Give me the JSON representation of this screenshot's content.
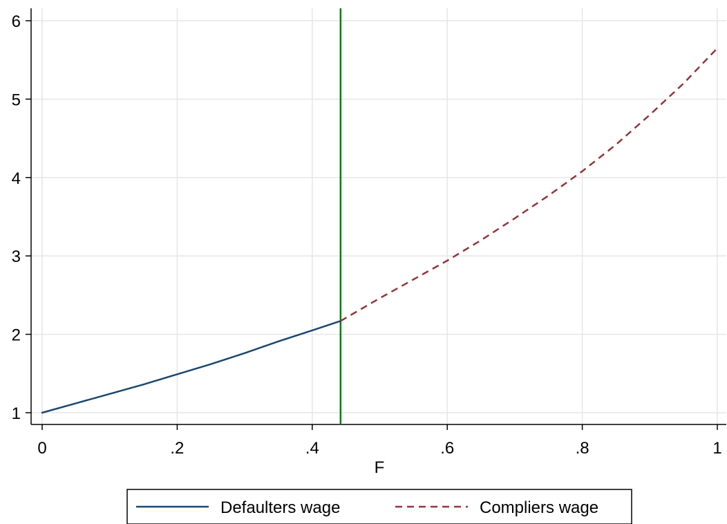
{
  "chart_data": {
    "type": "line",
    "title": "",
    "xlabel": "F",
    "ylabel": "",
    "xlim": [
      0,
      1
    ],
    "ylim": [
      1,
      6
    ],
    "grid": true,
    "legend_position": "bottom",
    "x_ticks": [
      {
        "value": 0,
        "label": "0"
      },
      {
        "value": 0.2,
        "label": ".2"
      },
      {
        "value": 0.4,
        "label": ".4"
      },
      {
        "value": 0.6,
        "label": ".6"
      },
      {
        "value": 0.8,
        "label": ".8"
      },
      {
        "value": 1,
        "label": "1"
      }
    ],
    "y_ticks": [
      {
        "value": 1,
        "label": "1"
      },
      {
        "value": 2,
        "label": "2"
      },
      {
        "value": 3,
        "label": "3"
      },
      {
        "value": 4,
        "label": "4"
      },
      {
        "value": 5,
        "label": "5"
      },
      {
        "value": 6,
        "label": "6"
      }
    ],
    "vertical_line": {
      "x": 0.442,
      "color": "#008000"
    },
    "series": [
      {
        "name": "Defaulters wage",
        "color": "#1a476f",
        "style": "solid",
        "x": [
          0,
          0.05,
          0.1,
          0.15,
          0.2,
          0.25,
          0.3,
          0.35,
          0.4,
          0.442
        ],
        "y": [
          1.0,
          1.12,
          1.24,
          1.36,
          1.49,
          1.62,
          1.76,
          1.91,
          2.05,
          2.17
        ]
      },
      {
        "name": "Compliers wage",
        "color": "#90353b",
        "style": "dashed",
        "x": [
          0.442,
          0.5,
          0.55,
          0.6,
          0.65,
          0.7,
          0.75,
          0.8,
          0.85,
          0.9,
          0.95,
          1.0
        ],
        "y": [
          2.17,
          2.46,
          2.7,
          2.94,
          3.2,
          3.48,
          3.77,
          4.08,
          4.42,
          4.8,
          5.2,
          5.65
        ]
      }
    ]
  }
}
